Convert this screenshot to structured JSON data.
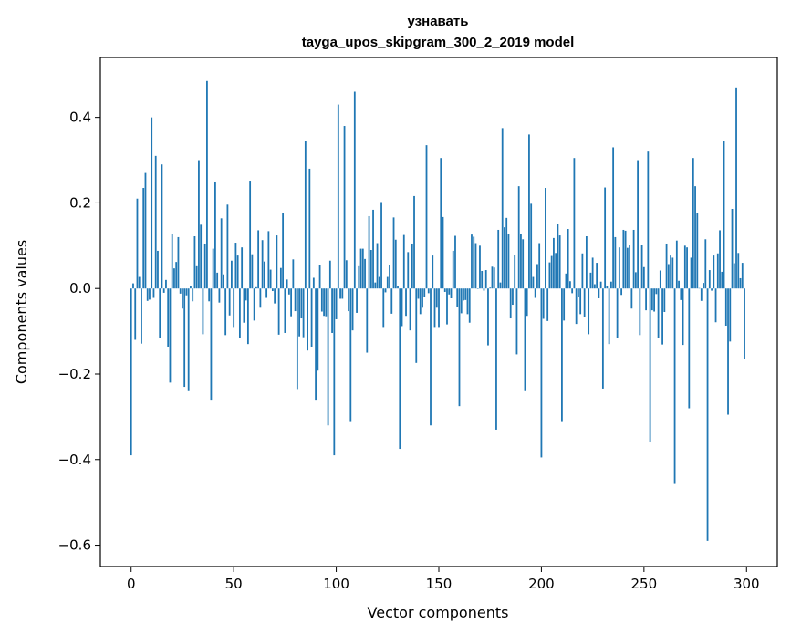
{
  "chart_data": {
    "type": "bar",
    "title": "узнавать",
    "subtitle": "tayga_upos_skipgram_300_2_2019 model",
    "xlabel": "Vector components",
    "ylabel": "Components values",
    "xlim": [
      -15,
      315
    ],
    "ylim": [
      -0.65,
      0.54
    ],
    "xticks": [
      0,
      50,
      100,
      150,
      200,
      250,
      300
    ],
    "xtick_labels": [
      "0",
      "50",
      "100",
      "150",
      "200",
      "250",
      "300"
    ],
    "yticks": [
      0.4,
      0.2,
      0.0,
      -0.2,
      -0.4,
      -0.6
    ],
    "ytick_labels": [
      "0.4",
      "0.2",
      "0.0",
      "−0.2",
      "−0.4",
      "−0.6"
    ],
    "bar_color": "#1f77b4",
    "grid": false,
    "legend": "none",
    "n_components": 300,
    "key_values": [
      {
        "x": 0,
        "y": -0.39
      },
      {
        "x": 2,
        "y": -0.12
      },
      {
        "x": 3,
        "y": 0.21
      },
      {
        "x": 7,
        "y": 0.27
      },
      {
        "x": 10,
        "y": 0.4
      },
      {
        "x": 12,
        "y": 0.31
      },
      {
        "x": 15,
        "y": 0.29
      },
      {
        "x": 19,
        "y": -0.22
      },
      {
        "x": 26,
        "y": -0.23
      },
      {
        "x": 28,
        "y": -0.24
      },
      {
        "x": 33,
        "y": 0.3
      },
      {
        "x": 37,
        "y": 0.485
      },
      {
        "x": 39,
        "y": -0.26
      },
      {
        "x": 41,
        "y": 0.25
      },
      {
        "x": 57,
        "y": -0.13
      },
      {
        "x": 78,
        "y": -0.065
      },
      {
        "x": 81,
        "y": -0.235
      },
      {
        "x": 85,
        "y": 0.345
      },
      {
        "x": 87,
        "y": 0.28
      },
      {
        "x": 90,
        "y": -0.26
      },
      {
        "x": 96,
        "y": -0.32
      },
      {
        "x": 99,
        "y": -0.39
      },
      {
        "x": 101,
        "y": 0.43
      },
      {
        "x": 104,
        "y": 0.38
      },
      {
        "x": 107,
        "y": -0.31
      },
      {
        "x": 109,
        "y": 0.46
      },
      {
        "x": 115,
        "y": -0.15
      },
      {
        "x": 131,
        "y": -0.375
      },
      {
        "x": 144,
        "y": 0.335
      },
      {
        "x": 146,
        "y": -0.32
      },
      {
        "x": 151,
        "y": 0.305
      },
      {
        "x": 160,
        "y": -0.275
      },
      {
        "x": 178,
        "y": -0.33
      },
      {
        "x": 181,
        "y": 0.375
      },
      {
        "x": 192,
        "y": -0.24
      },
      {
        "x": 194,
        "y": 0.36
      },
      {
        "x": 200,
        "y": -0.395
      },
      {
        "x": 202,
        "y": 0.235
      },
      {
        "x": 210,
        "y": -0.31
      },
      {
        "x": 216,
        "y": 0.305
      },
      {
        "x": 235,
        "y": 0.33
      },
      {
        "x": 247,
        "y": 0.3
      },
      {
        "x": 252,
        "y": 0.32
      },
      {
        "x": 253,
        "y": -0.36
      },
      {
        "x": 265,
        "y": -0.455
      },
      {
        "x": 272,
        "y": -0.28
      },
      {
        "x": 274,
        "y": 0.305
      },
      {
        "x": 281,
        "y": -0.59
      },
      {
        "x": 289,
        "y": 0.345
      },
      {
        "x": 291,
        "y": -0.295
      },
      {
        "x": 295,
        "y": 0.47
      },
      {
        "x": 298,
        "y": 0.06
      },
      {
        "x": 299,
        "y": -0.165
      }
    ]
  }
}
